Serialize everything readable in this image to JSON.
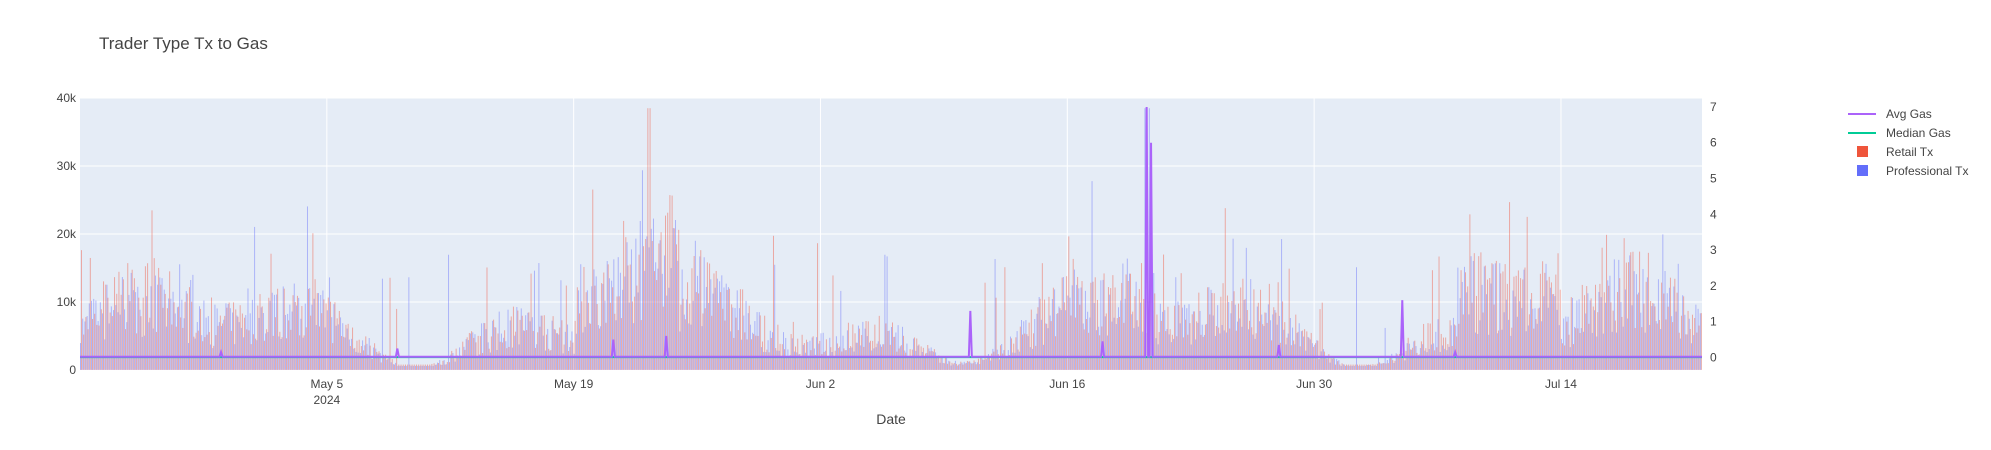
{
  "chart_data": {
    "type": "bar",
    "title": "Trader Type Tx to Gas",
    "xlabel": "Date",
    "ylabel": "",
    "y2label": "",
    "x_range": [
      "2024-04-21",
      "2024-07-22"
    ],
    "ylim": [
      0,
      40000
    ],
    "y2lim": [
      -0.35,
      7.25
    ],
    "x_ticks": [
      {
        "date": "2024-05-05",
        "label": "May 5",
        "sub": "2024"
      },
      {
        "date": "2024-05-19",
        "label": "May 19",
        "sub": ""
      },
      {
        "date": "2024-06-02",
        "label": "Jun 2",
        "sub": ""
      },
      {
        "date": "2024-06-16",
        "label": "Jun 16",
        "sub": ""
      },
      {
        "date": "2024-06-30",
        "label": "Jun 30",
        "sub": ""
      },
      {
        "date": "2024-07-14",
        "label": "Jul 14",
        "sub": ""
      }
    ],
    "y_ticks": [
      {
        "value": 0,
        "label": "0"
      },
      {
        "value": 10000,
        "label": "10k"
      },
      {
        "value": 20000,
        "label": "20k"
      },
      {
        "value": 30000,
        "label": "30k"
      },
      {
        "value": 40000,
        "label": "40k"
      }
    ],
    "y2_ticks": [
      {
        "value": 0,
        "label": "0"
      },
      {
        "value": 1,
        "label": "1"
      },
      {
        "value": 2,
        "label": "2"
      },
      {
        "value": 3,
        "label": "3"
      },
      {
        "value": 4,
        "label": "4"
      },
      {
        "value": 5,
        "label": "5"
      },
      {
        "value": 6,
        "label": "6"
      },
      {
        "value": 7,
        "label": "7"
      }
    ],
    "grid": true,
    "legend_position": "top-right",
    "series": [
      {
        "name": "Avg Gas",
        "kind": "line",
        "axis": "y2",
        "color": "#ab63fa",
        "baseline": 0.02,
        "spikes": [
          {
            "date": "2024-06-20T12:00",
            "value": 7.0
          },
          {
            "date": "2024-06-20T18:00",
            "value": 6.0
          },
          {
            "date": "2024-06-10T12:00",
            "value": 1.3
          },
          {
            "date": "2024-05-21T06:00",
            "value": 0.5
          },
          {
            "date": "2024-05-24T06:00",
            "value": 0.6
          },
          {
            "date": "2024-07-05T00:00",
            "value": 1.6
          },
          {
            "date": "2024-06-18T00:00",
            "value": 0.45
          },
          {
            "date": "2024-06-28T00:00",
            "value": 0.35
          },
          {
            "date": "2024-05-09T00:00",
            "value": 0.25
          },
          {
            "date": "2024-04-29T00:00",
            "value": 0.15
          },
          {
            "date": "2024-07-08T00:00",
            "value": 0.15
          }
        ]
      },
      {
        "name": "Median Gas",
        "kind": "line",
        "axis": "y2",
        "color": "#00cc96",
        "baseline": 0.01
      },
      {
        "name": "Retail Tx",
        "kind": "bar",
        "axis": "y",
        "color": "#ef553b",
        "typical_range": [
          3000,
          20000
        ],
        "max": 38500
      },
      {
        "name": "Professional Tx",
        "kind": "bar",
        "axis": "y",
        "color": "#636efa",
        "typical_range": [
          2000,
          20000
        ],
        "max": 38500
      }
    ]
  }
}
